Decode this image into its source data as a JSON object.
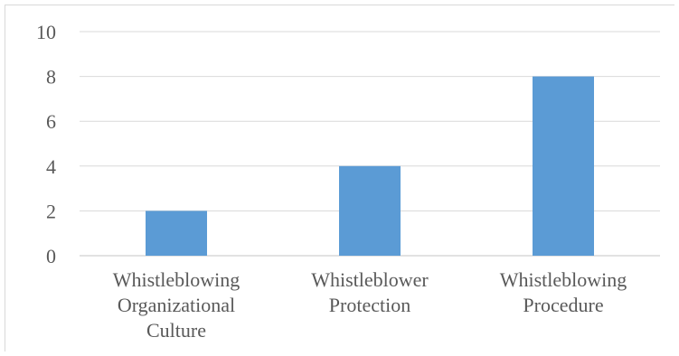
{
  "chart_data": {
    "type": "bar",
    "categories": [
      [
        "Whistleblowing",
        "Organizational",
        "Culture"
      ],
      [
        "Whistleblower",
        "Protection"
      ],
      [
        "Whistleblowing",
        "Procedure"
      ]
    ],
    "values": [
      2,
      4,
      8
    ],
    "ylim": [
      0,
      10
    ],
    "yticks": [
      "0",
      "2",
      "4",
      "6",
      "8",
      "10"
    ],
    "title": "",
    "xlabel": "",
    "ylabel": "",
    "grid": true,
    "legend": "none",
    "bar_color": "#5b9bd5",
    "grid_color": "#d9d9d9",
    "text_color": "#595959"
  }
}
